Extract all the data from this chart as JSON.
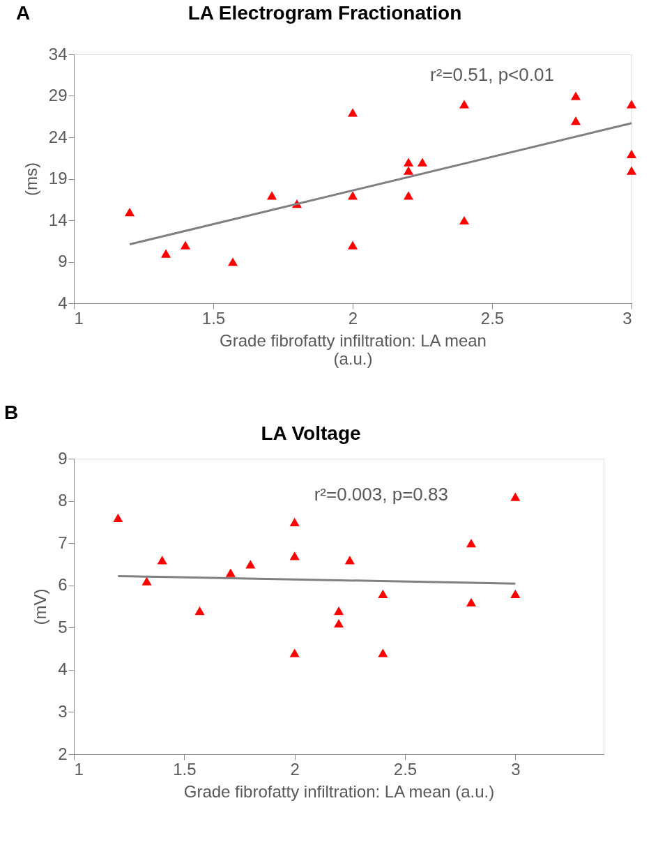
{
  "chart_data": [
    {
      "type": "scatter",
      "title": "LA Electrogram Fractionation",
      "xlabel": "Grade fibrofatty infiltration: LA mean\n(a.u.)",
      "ylabel": "(ms)",
      "annotations": [
        "A",
        "r²=0.51, p<0.01"
      ],
      "xlim": [
        1,
        3
      ],
      "xticks": [
        1,
        1.5,
        2,
        2.5,
        3
      ],
      "ylim": [
        4,
        34
      ],
      "yticks": [
        4,
        9,
        14,
        19,
        24,
        29,
        34
      ],
      "series": [
        {
          "marker": "triangle",
          "color": "#ff0000",
          "x": [
            1.2,
            1.33,
            1.4,
            1.57,
            1.71,
            1.8,
            2.0,
            2.0,
            2.0,
            2.2,
            2.2,
            2.2,
            2.25,
            2.4,
            2.4,
            2.8,
            2.8,
            3.0,
            3.0,
            3.0
          ],
          "values": [
            15,
            10,
            11,
            9,
            17,
            16,
            27,
            17,
            11,
            21,
            20,
            17,
            21,
            28,
            14,
            29,
            26,
            28,
            22,
            20
          ]
        },
        {
          "type": "line",
          "marker": "none",
          "color": "#808080",
          "x": [
            1.2,
            3.0
          ],
          "values": [
            11.1,
            25.7
          ]
        }
      ]
    },
    {
      "type": "scatter",
      "title": "LA Voltage",
      "xlabel": "Grade fibrofatty infiltration: LA mean (a.u.)",
      "ylabel": "(mV)",
      "annotations": [
        "B",
        "r²=0.003, p=0.83"
      ],
      "xlim": [
        1,
        3.4
      ],
      "xticks": [
        1,
        1.5,
        2,
        2.5,
        3
      ],
      "ylim": [
        2,
        9
      ],
      "yticks": [
        2,
        3,
        4,
        5,
        6,
        7,
        8,
        9
      ],
      "series": [
        {
          "marker": "triangle",
          "color": "#ff0000",
          "x": [
            1.2,
            1.33,
            1.4,
            1.57,
            1.71,
            1.8,
            2.0,
            2.0,
            2.0,
            2.2,
            2.2,
            2.25,
            2.4,
            2.4,
            2.8,
            2.8,
            3.0,
            3.0
          ],
          "values": [
            7.6,
            6.1,
            6.6,
            5.4,
            6.3,
            6.5,
            7.5,
            6.7,
            4.4,
            5.4,
            5.1,
            6.6,
            5.8,
            4.4,
            7.0,
            5.6,
            8.1,
            5.8
          ]
        },
        {
          "type": "line",
          "marker": "none",
          "color": "#808080",
          "x": [
            1.2,
            3.0
          ],
          "values": [
            6.22,
            6.04
          ]
        }
      ]
    }
  ]
}
